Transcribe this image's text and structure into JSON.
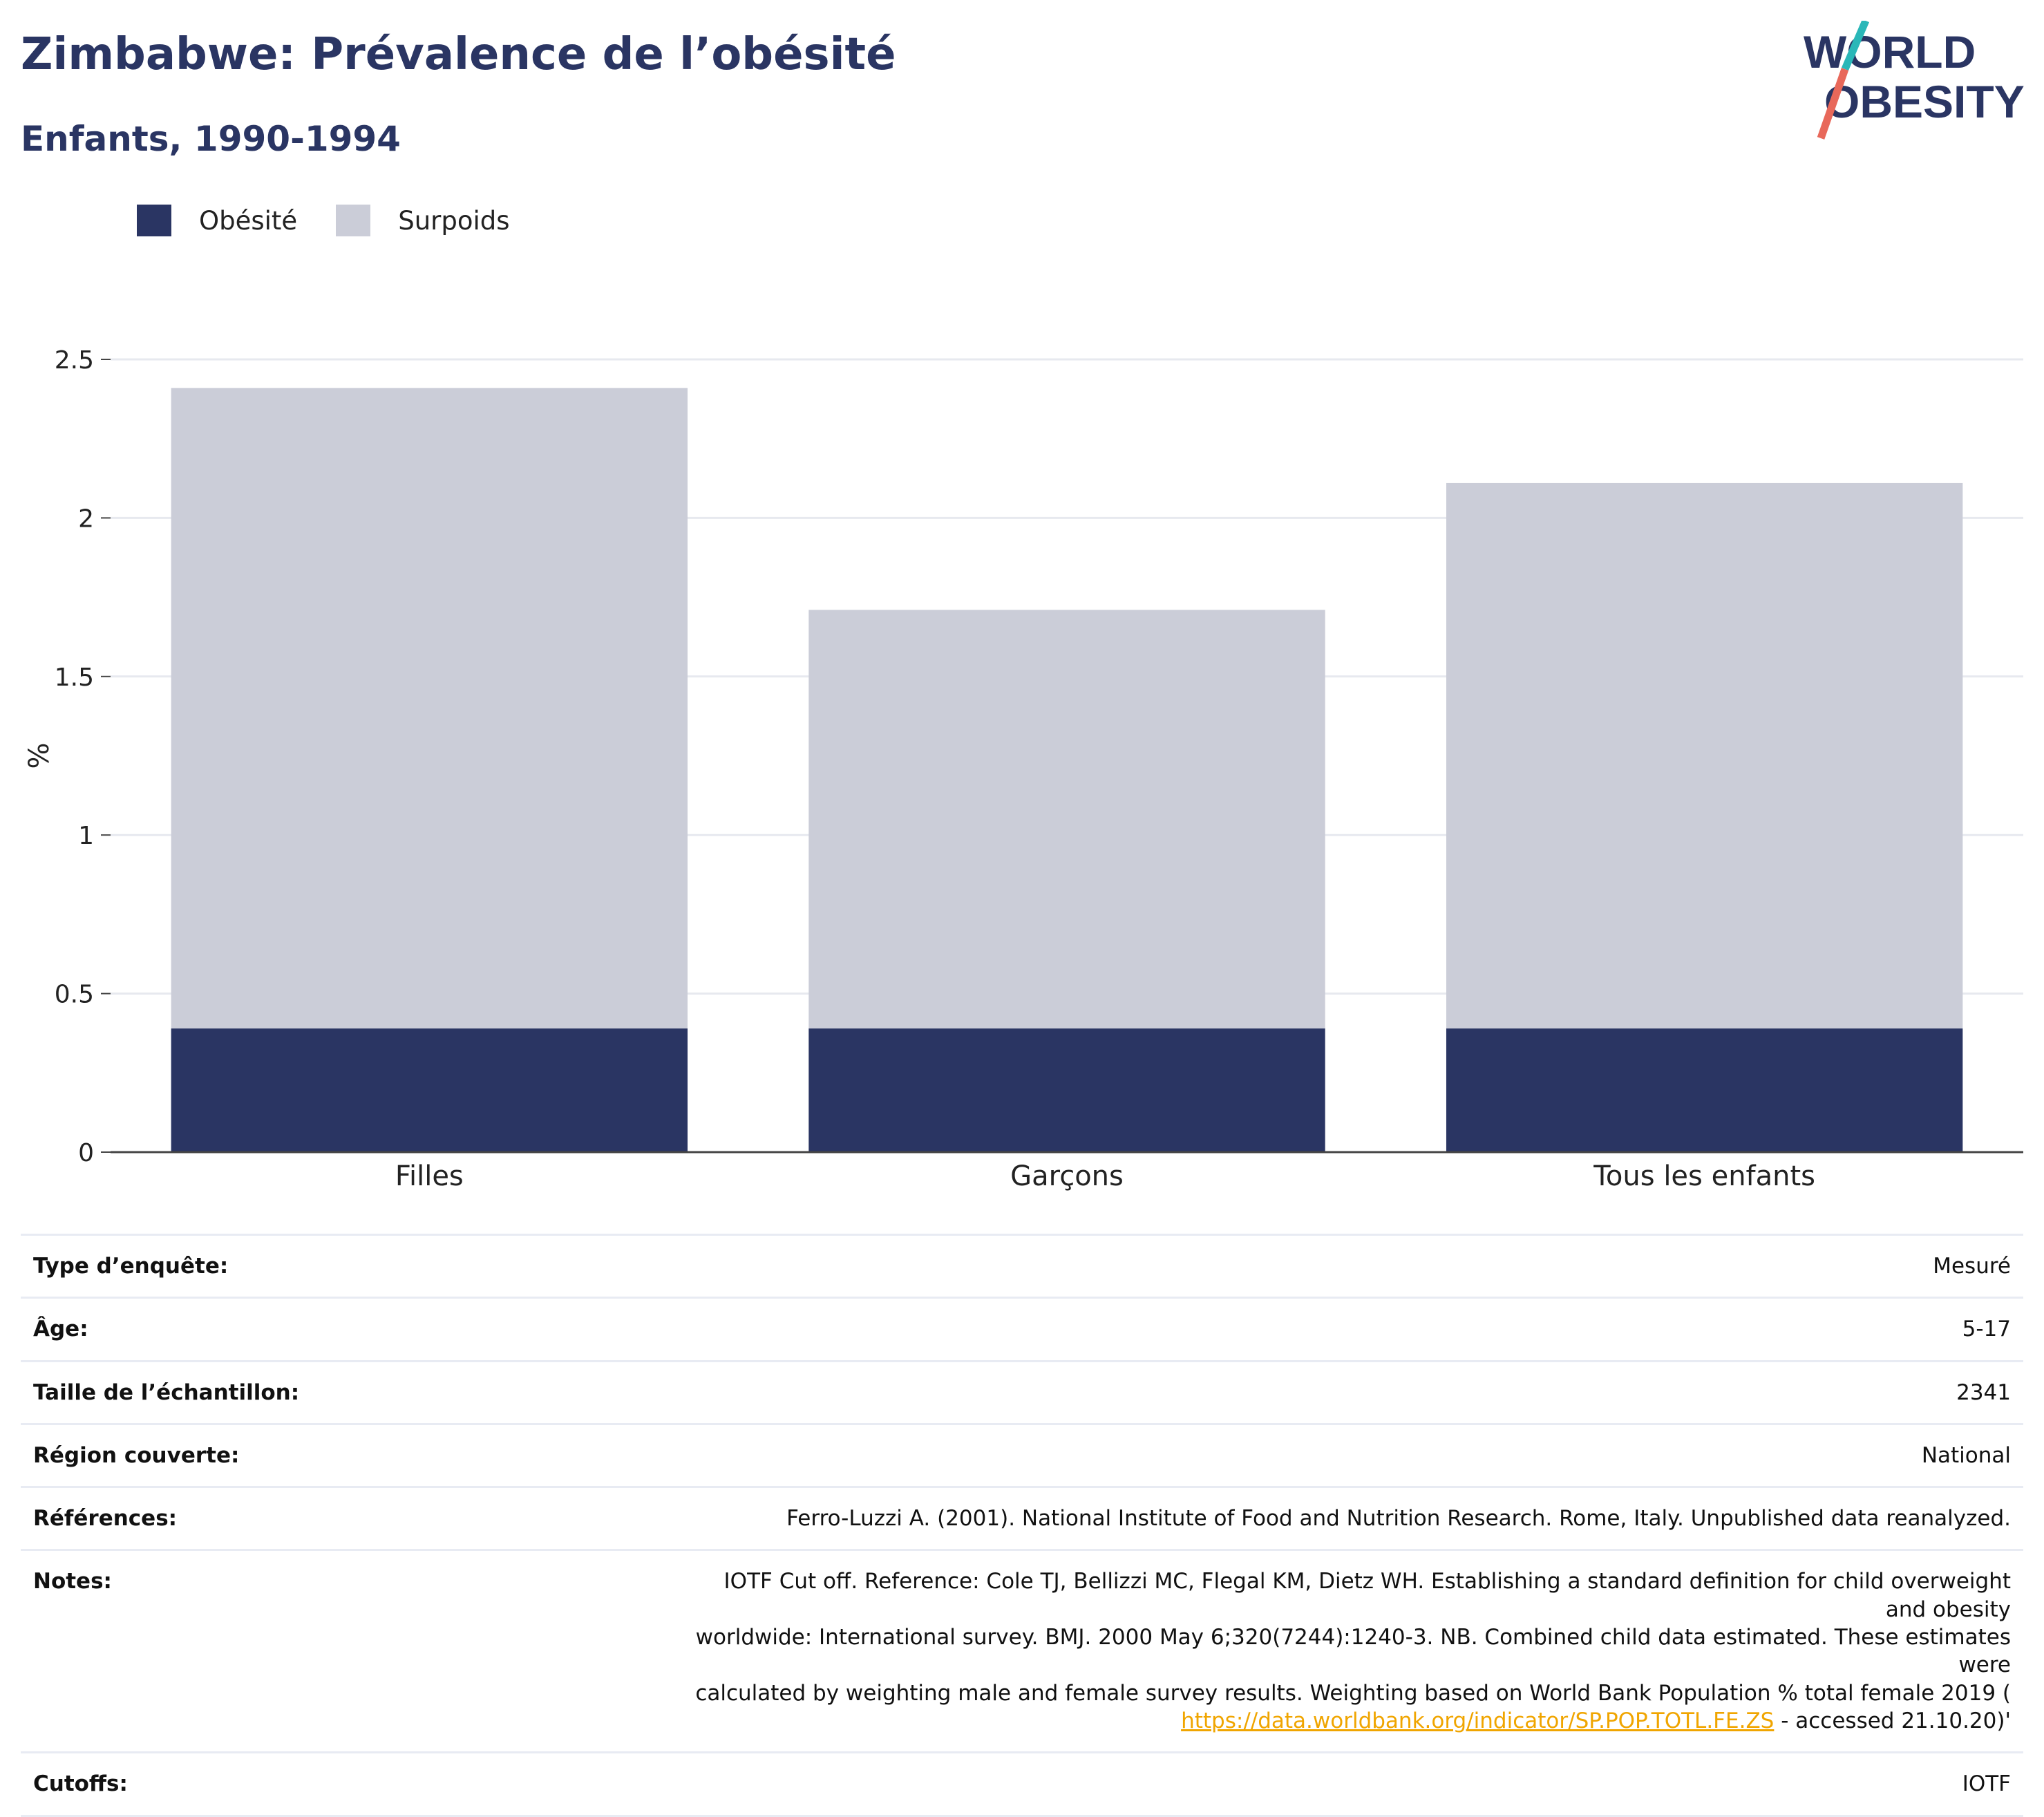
{
  "header": {
    "title": "Zimbabwe: Prévalence de l’obésité",
    "subtitle": "Enfants, 1990-1994"
  },
  "logo": {
    "line1": "WORLD",
    "line2": "OBESITY",
    "colors": {
      "text": "#2a3563",
      "slash_top": "#2ab7b8",
      "slash_bottom": "#e8685a"
    }
  },
  "legend": [
    {
      "label": "Obésité",
      "color": "#2a3563"
    },
    {
      "label": "Surpoids",
      "color": "#cbcdd8"
    }
  ],
  "chart_data": {
    "type": "bar",
    "stacked": true,
    "categories": [
      "Filles",
      "Garçons",
      "Tous les enfants"
    ],
    "series": [
      {
        "name": "Obésité",
        "color": "#2a3563",
        "values": [
          0.39,
          0.39,
          0.39
        ]
      },
      {
        "name": "Surpoids",
        "color": "#cbcdd8",
        "values": [
          2.02,
          1.32,
          1.72
        ]
      }
    ],
    "ylabel": "%",
    "ylim": [
      0,
      2.5
    ],
    "yticks": [
      0,
      0.5,
      1,
      1.5,
      2,
      2.5
    ],
    "ytick_labels": [
      "0",
      "0.5",
      "1",
      "1.5",
      "2",
      "2.5"
    ],
    "grid": true,
    "legend_position": "top-left"
  },
  "info": [
    {
      "label": "Type d’enquête:",
      "value": "Mesuré"
    },
    {
      "label": "Âge:",
      "value": "5-17"
    },
    {
      "label": "Taille de l’échantillon:",
      "value": "2341"
    },
    {
      "label": "Région couverte:",
      "value": "National"
    },
    {
      "label": "Références:",
      "value": "Ferro-Luzzi A. (2001). National Institute of Food and Nutrition Research. Rome, Italy. Unpublished data reanalyzed."
    }
  ],
  "notes": {
    "label": "Notes:",
    "text_line1": "IOTF Cut off. Reference: Cole TJ, Bellizzi MC, Flegal KM, Dietz WH. Establishing a standard definition for child overweight and obesity",
    "text_line2": "worldwide: International survey. BMJ. 2000 May 6;320(7244):1240-3. NB. Combined child data estimated. These estimates were",
    "text_line3": "calculated by weighting male and female survey results. Weighting based on World Bank Population % total female 2019 (",
    "link": "https://data.worldbank.org/indicator/SP.POP.TOTL.FE.ZS",
    "text_after_link": " - accessed 21.10.20)'"
  },
  "cutoffs": {
    "label": "Cutoffs:",
    "value": "IOTF"
  }
}
